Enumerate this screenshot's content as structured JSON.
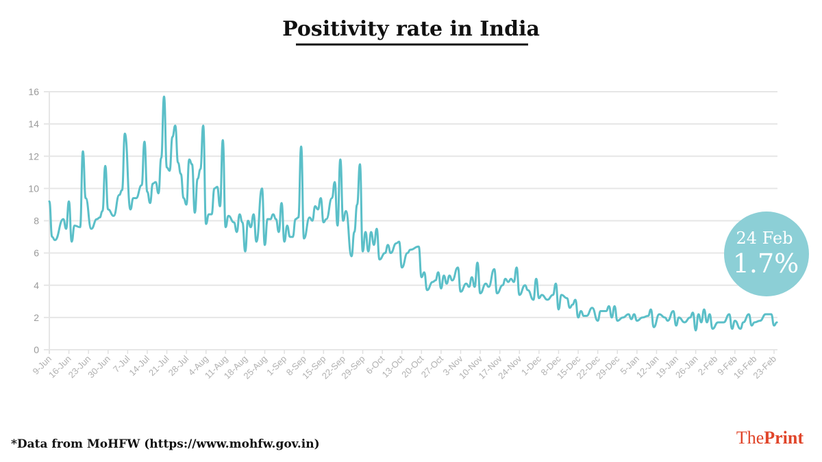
{
  "chart_data": {
    "type": "line",
    "title": "Positivity rate in India",
    "xlabel": "",
    "ylabel": "",
    "ylim": [
      0,
      16
    ],
    "yticks": [
      "0",
      "2",
      "4",
      "6",
      "8",
      "10",
      "12",
      "14",
      "16"
    ],
    "xticks": [
      "9-Jun",
      "16-Jun",
      "23-Jun",
      "30-Jun",
      "7-Jul",
      "14-Jul",
      "21-Jul",
      "28-Jul",
      "4-Aug",
      "11-Aug",
      "18-Aug",
      "25-Aug",
      "1-Sep",
      "8-Sep",
      "15-Sep",
      "22-Sep",
      "29-Sep",
      "6-Oct",
      "13-Oct",
      "20-Oct",
      "27-Oct",
      "3-Nov",
      "10-Nov",
      "17-Nov",
      "24-Nov",
      "1-Dec",
      "8-Dec",
      "15-Dec",
      "22-Dec",
      "29-Dec",
      "5-Jan",
      "12-Jan",
      "19-Jan",
      "26-Jan",
      "2-Feb",
      "9-Feb",
      "16-Feb",
      "23-Feb"
    ],
    "grid": true,
    "line_color": "#5bbfc8",
    "x": [
      "9-Jun",
      "10-Jun",
      "11-Jun",
      "14-Jun",
      "15-Jun",
      "16-Jun",
      "17-Jun",
      "18-Jun",
      "20-Jun",
      "21-Jun",
      "22-Jun",
      "24-Jun",
      "26-Jun",
      "27-Jun",
      "28-Jun",
      "29-Jun",
      "30-Jun",
      "2-Jul",
      "4-Jul",
      "5-Jul",
      "6-Jul",
      "8-Jul",
      "9-Jul",
      "10-Jul",
      "12-Jul",
      "13-Jul",
      "14-Jul",
      "15-Jul",
      "16-Jul",
      "17-Jul",
      "18-Jul",
      "19-Jul",
      "20-Jul",
      "21-Jul",
      "22-Jul",
      "23-Jul",
      "24-Jul",
      "25-Jul",
      "26-Jul",
      "27-Jul",
      "28-Jul",
      "29-Jul",
      "30-Jul",
      "31-Jul",
      "1-Aug",
      "2-Aug",
      "3-Aug",
      "4-Aug",
      "5-Aug",
      "6-Aug",
      "7-Aug",
      "8-Aug",
      "9-Aug",
      "10-Aug",
      "11-Aug",
      "12-Aug",
      "14-Aug",
      "15-Aug",
      "16-Aug",
      "17-Aug",
      "18-Aug",
      "19-Aug",
      "20-Aug",
      "21-Aug",
      "22-Aug",
      "24-Aug",
      "25-Aug",
      "26-Aug",
      "27-Aug",
      "28-Aug",
      "29-Aug",
      "30-Aug",
      "31-Aug",
      "1-Sep",
      "2-Sep",
      "3-Sep",
      "4-Sep",
      "5-Sep",
      "6-Sep",
      "7-Sep",
      "8-Sep",
      "10-Sep",
      "11-Sep",
      "12-Sep",
      "13-Sep",
      "14-Sep",
      "15-Sep",
      "16-Sep",
      "18-Sep",
      "19-Sep",
      "20-Sep",
      "21-Sep",
      "22-Sep",
      "23-Sep",
      "25-Sep",
      "26-Sep",
      "27-Sep",
      "28-Sep",
      "29-Sep",
      "30-Sep",
      "1-Oct",
      "2-Oct",
      "3-Oct",
      "4-Oct",
      "5-Oct",
      "7-Oct",
      "8-Oct",
      "9-Oct",
      "11-Oct",
      "12-Oct",
      "13-Oct",
      "15-Oct",
      "16-Oct",
      "19-Oct",
      "20-Oct",
      "21-Oct",
      "22-Oct",
      "24-Oct",
      "25-Oct",
      "26-Oct",
      "27-Oct",
      "28-Oct",
      "29-Oct",
      "30-Oct",
      "31-Oct",
      "2-Nov",
      "3-Nov",
      "5-Nov",
      "6-Nov",
      "7-Nov",
      "8-Nov",
      "9-Nov",
      "10-Nov",
      "12-Nov",
      "13-Nov",
      "15-Nov",
      "16-Nov",
      "18-Nov",
      "19-Nov",
      "20-Nov",
      "21-Nov",
      "22-Nov",
      "23-Nov",
      "24-Nov",
      "26-Nov",
      "27-Nov",
      "29-Nov",
      "30-Nov",
      "1-Dec",
      "2-Dec",
      "4-Dec",
      "6-Dec",
      "7-Dec",
      "8-Dec",
      "9-Dec",
      "11-Dec",
      "12-Dec",
      "13-Dec",
      "14-Dec",
      "15-Dec",
      "16-Dec",
      "17-Dec",
      "18-Dec",
      "20-Dec",
      "22-Dec",
      "23-Dec",
      "25-Dec",
      "26-Dec",
      "27-Dec",
      "28-Dec",
      "29-Dec",
      "31-Dec",
      "2-Jan",
      "3-Jan",
      "4-Jan",
      "5-Jan",
      "7-Jan",
      "9-Jan",
      "10-Jan",
      "11-Jan",
      "13-Jan",
      "15-Jan",
      "16-Jan",
      "18-Jan",
      "19-Jan",
      "20-Jan",
      "22-Jan",
      "24-Jan",
      "25-Jan",
      "26-Jan",
      "27-Jan",
      "28-Jan",
      "29-Jan",
      "30-Jan",
      "31-Jan",
      "1-Feb",
      "3-Feb",
      "5-Feb",
      "7-Feb",
      "8-Feb",
      "9-Feb",
      "11-Feb",
      "12-Feb",
      "14-Feb",
      "15-Feb",
      "16-Feb",
      "18-Feb",
      "20-Feb",
      "22-Feb",
      "23-Feb",
      "24-Feb"
    ],
    "y": [
      9.2,
      7.0,
      6.8,
      8.1,
      7.5,
      9.2,
      6.7,
      7.7,
      7.6,
      12.3,
      9.4,
      7.5,
      8.1,
      8.2,
      8.6,
      11.4,
      8.7,
      8.3,
      9.6,
      9.9,
      13.4,
      8.7,
      9.4,
      9.4,
      10.2,
      12.9,
      9.8,
      9.1,
      10.3,
      10.4,
      9.7,
      11.9,
      15.7,
      11.3,
      11.1,
      13.2,
      13.9,
      11.6,
      10.9,
      9.4,
      9.0,
      11.8,
      11.5,
      8.5,
      10.6,
      11.2,
      13.9,
      7.8,
      8.4,
      8.4,
      10.0,
      10.1,
      8.9,
      13.0,
      7.6,
      8.3,
      7.9,
      7.3,
      8.4,
      7.9,
      6.1,
      8.0,
      7.6,
      8.4,
      6.7,
      10.0,
      6.5,
      8.1,
      8.1,
      8.4,
      8.1,
      7.3,
      9.1,
      6.7,
      7.7,
      7.0,
      7.0,
      8.1,
      8.2,
      12.6,
      6.9,
      8.2,
      8.0,
      8.9,
      8.7,
      9.4,
      7.9,
      8.1,
      9.4,
      10.4,
      7.7,
      11.8,
      8.0,
      8.6,
      5.8,
      7.3,
      9.0,
      11.5,
      6.1,
      7.3,
      6.1,
      7.3,
      6.5,
      7.5,
      5.6,
      6.0,
      6.5,
      6.0,
      6.6,
      6.7,
      5.1,
      6.0,
      6.2,
      6.4,
      4.5,
      4.8,
      3.7,
      4.2,
      4.3,
      4.8,
      3.8,
      4.6,
      4.1,
      4.6,
      4.3,
      5.1,
      3.6,
      4.1,
      3.9,
      4.5,
      3.9,
      5.4,
      3.5,
      4.1,
      3.9,
      5.0,
      3.5,
      4.0,
      4.4,
      4.2,
      4.4,
      4.2,
      5.1,
      3.4,
      4.0,
      3.7,
      3.1,
      4.4,
      3.2,
      3.4,
      3.1,
      3.4,
      4.1,
      2.5,
      3.4,
      3.2,
      2.6,
      2.8,
      3.1,
      2.0,
      2.4,
      2.1,
      2.1,
      2.6,
      1.8,
      2.4,
      2.4,
      2.7,
      2.0,
      2.7,
      1.8,
      2.0,
      2.2,
      1.9,
      2.2,
      1.8,
      2.0,
      2.1,
      2.5,
      1.4,
      2.2,
      2.0,
      1.8,
      2.4,
      1.5,
      2.0,
      1.7,
      2.0,
      2.3,
      1.2,
      2.2,
      1.7,
      2.5,
      1.7,
      2.2,
      1.3,
      1.7,
      1.7,
      2.2,
      1.3,
      1.8,
      1.3,
      1.7,
      2.2,
      1.5,
      1.7,
      1.8,
      2.2,
      2.2,
      1.5,
      1.7
    ],
    "annotation": {
      "date": "24 Feb",
      "value": "1.7%",
      "color": "#8ccfd6"
    }
  },
  "footer": {
    "source": "*Data from MoHFW (https://www.mohfw.gov.in)",
    "logo_part1": "The",
    "logo_part2": "Print",
    "logo_color": "#e0452a"
  }
}
